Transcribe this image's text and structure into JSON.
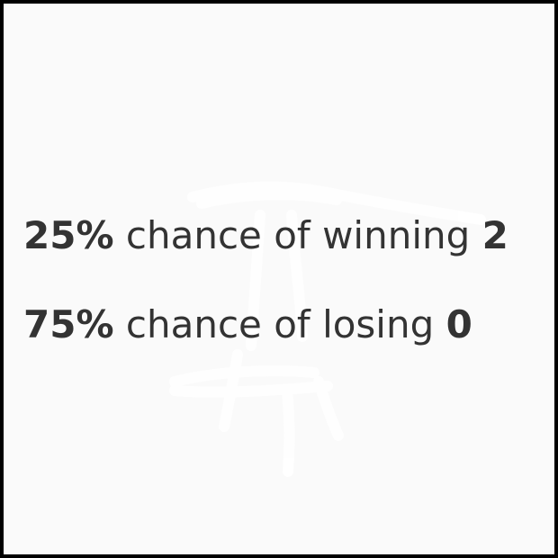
{
  "outcomes": [
    {
      "percent": "25%",
      "text": " chance of winning ",
      "amount": "2"
    },
    {
      "percent": "75%",
      "text": " chance of losing ",
      "amount": "0"
    }
  ],
  "colors": {
    "background": "#fafafa",
    "border": "#000000",
    "text": "#333333",
    "scribble": "#ffffff"
  }
}
